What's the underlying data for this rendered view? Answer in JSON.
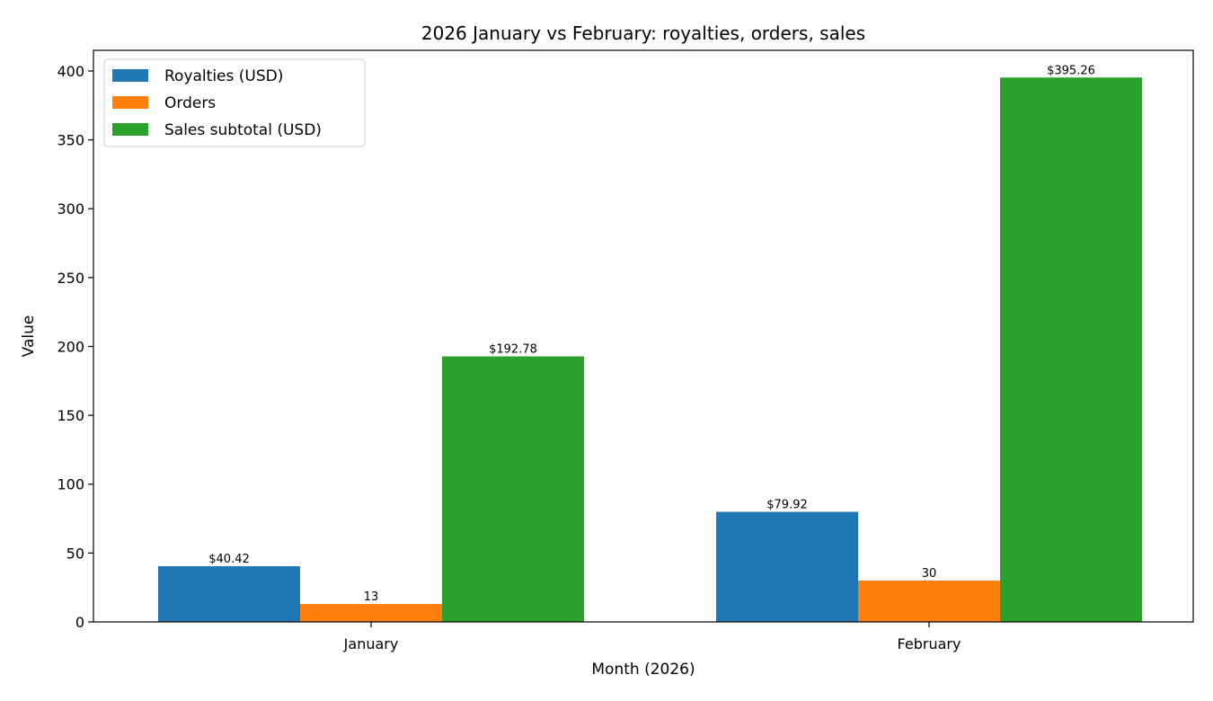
{
  "chart_data": {
    "type": "bar",
    "title": "2026 January vs February: royalties, orders, sales",
    "xlabel": "Month (2026)",
    "ylabel": "Value",
    "categories": [
      "January",
      "February"
    ],
    "ylim": [
      0,
      415
    ],
    "yticks": [
      0,
      50,
      100,
      150,
      200,
      250,
      300,
      350,
      400
    ],
    "grid": false,
    "legend_position": "top-left",
    "series": [
      {
        "name": "Royalties (USD)",
        "color": "#1f77b4",
        "values": [
          40.42,
          79.92
        ],
        "labels": [
          "$40.42",
          "$79.92"
        ]
      },
      {
        "name": "Orders",
        "color": "#ff7f0e",
        "values": [
          13,
          30
        ],
        "labels": [
          "13",
          "30"
        ]
      },
      {
        "name": "Sales subtotal (USD)",
        "color": "#2ca02c",
        "values": [
          192.78,
          395.26
        ],
        "labels": [
          "$192.78",
          "$395.26"
        ]
      }
    ]
  }
}
